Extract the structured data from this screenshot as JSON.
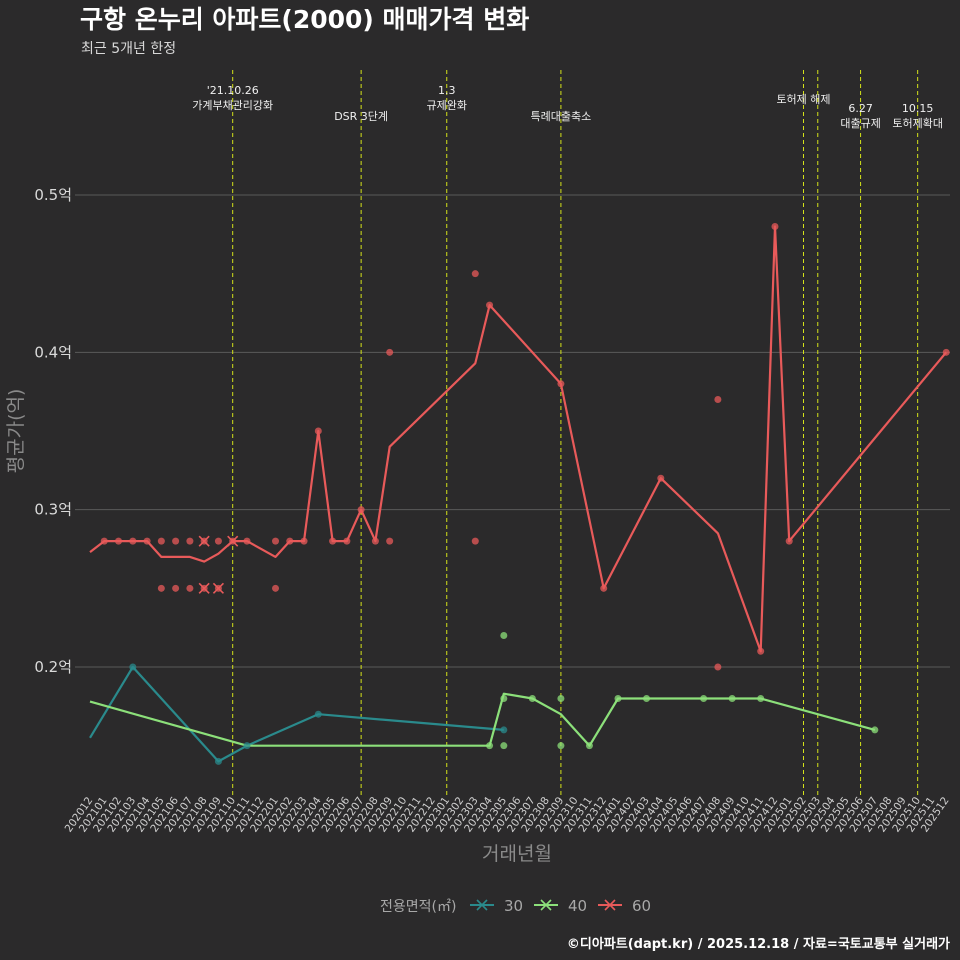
{
  "header": {
    "title": "구항 온누리 아파트(2000) 매매가격 변화",
    "subtitle": "최근 5개년 한정"
  },
  "caption": "©디아파트(dapt.kr) / 2025.12.18 / 자료=국토교통부 실거래가",
  "colors": {
    "background": "#2b2a2b",
    "grid": "#5a5a5a",
    "event_line": "#d4e21a",
    "s30": "#2a8a8c",
    "s40": "#8ce07a",
    "s60": "#e85a5a"
  },
  "chart_data": {
    "type": "line",
    "title": "구항 온누리 아파트(2000) 매매가격 변화",
    "xlabel": "거래년월",
    "ylabel": "평균가(억)",
    "ylim": [
      0.125,
      0.575
    ],
    "yticks": [
      0.2,
      0.3,
      0.4,
      0.5
    ],
    "ytick_labels": [
      "0.2억",
      "0.3억",
      "0.4억",
      "0.5억"
    ],
    "categories": [
      "202012",
      "202101",
      "202102",
      "202103",
      "202104",
      "202105",
      "202106",
      "202107",
      "202108",
      "202109",
      "202110",
      "202111",
      "202112",
      "202201",
      "202202",
      "202203",
      "202204",
      "202205",
      "202206",
      "202207",
      "202208",
      "202209",
      "202210",
      "202211",
      "202212",
      "202301",
      "202302",
      "202303",
      "202304",
      "202305",
      "202306",
      "202307",
      "202308",
      "202309",
      "202310",
      "202311",
      "202312",
      "202401",
      "202402",
      "202403",
      "202404",
      "202405",
      "202406",
      "202407",
      "202408",
      "202409",
      "202410",
      "202411",
      "202412",
      "202501",
      "202502",
      "202503",
      "202504",
      "202505",
      "202506",
      "202507",
      "202508",
      "202509",
      "202510",
      "202511",
      "202512"
    ],
    "legend_title": "전용면적(㎡)",
    "series": [
      {
        "name": "30",
        "line": [
          [
            "202012",
            0.155
          ],
          [
            "202103",
            0.2
          ],
          [
            "202109",
            0.14
          ],
          [
            "202111",
            0.15
          ],
          [
            "202204",
            0.17
          ],
          [
            "202305",
            0.16
          ]
        ],
        "points": [
          [
            "202103",
            0.2
          ],
          [
            "202109",
            0.14
          ],
          [
            "202111",
            0.15
          ],
          [
            "202204",
            0.17
          ],
          [
            "202305",
            0.16
          ]
        ]
      },
      {
        "name": "40",
        "line": [
          [
            "202012",
            0.178
          ],
          [
            "202111",
            0.15
          ],
          [
            "202304",
            0.15
          ],
          [
            "202305",
            0.183
          ],
          [
            "202307",
            0.18
          ],
          [
            "202309",
            0.17
          ],
          [
            "202311",
            0.15
          ],
          [
            "202401",
            0.18
          ],
          [
            "202411",
            0.18
          ],
          [
            "202507",
            0.16
          ]
        ],
        "points": [
          [
            "202304",
            0.15
          ],
          [
            "202305",
            0.22
          ],
          [
            "202305",
            0.18
          ],
          [
            "202305",
            0.15
          ],
          [
            "202307",
            0.18
          ],
          [
            "202309",
            0.18
          ],
          [
            "202309",
            0.15
          ],
          [
            "202311",
            0.15
          ],
          [
            "202401",
            0.18
          ],
          [
            "202403",
            0.18
          ],
          [
            "202407",
            0.18
          ],
          [
            "202409",
            0.18
          ],
          [
            "202411",
            0.18
          ],
          [
            "202507",
            0.16
          ]
        ]
      },
      {
        "name": "60",
        "line": [
          [
            "202012",
            0.273
          ],
          [
            "202101",
            0.28
          ],
          [
            "202104",
            0.28
          ],
          [
            "202105",
            0.27
          ],
          [
            "202107",
            0.27
          ],
          [
            "202108",
            0.267
          ],
          [
            "202109",
            0.272
          ],
          [
            "202110",
            0.28
          ],
          [
            "202111",
            0.28
          ],
          [
            "202201",
            0.27
          ],
          [
            "202202",
            0.28
          ],
          [
            "202203",
            0.28
          ],
          [
            "202204",
            0.35
          ],
          [
            "202205",
            0.28
          ],
          [
            "202206",
            0.28
          ],
          [
            "202207",
            0.3
          ],
          [
            "202208",
            0.28
          ],
          [
            "202209",
            0.34
          ],
          [
            "202303",
            0.393
          ],
          [
            "202304",
            0.43
          ],
          [
            "202309",
            0.38
          ],
          [
            "202312",
            0.25
          ],
          [
            "202404",
            0.32
          ],
          [
            "202408",
            0.285
          ],
          [
            "202411",
            0.21
          ],
          [
            "202412",
            0.48
          ],
          [
            "202501",
            0.28
          ],
          [
            "202512",
            0.4
          ]
        ],
        "points": [
          [
            "202101",
            0.28
          ],
          [
            "202102",
            0.28
          ],
          [
            "202103",
            0.28
          ],
          [
            "202104",
            0.28
          ],
          [
            "202105",
            0.28
          ],
          [
            "202106",
            0.28
          ],
          [
            "202107",
            0.28
          ],
          [
            "202108",
            0.28
          ],
          [
            "202109",
            0.28
          ],
          [
            "202110",
            0.28
          ],
          [
            "202111",
            0.28
          ],
          [
            "202201",
            0.28
          ],
          [
            "202202",
            0.28
          ],
          [
            "202203",
            0.28
          ],
          [
            "202105",
            0.25
          ],
          [
            "202106",
            0.25
          ],
          [
            "202107",
            0.25
          ],
          [
            "202108",
            0.25
          ],
          [
            "202109",
            0.25
          ],
          [
            "202201",
            0.25
          ],
          [
            "202204",
            0.35
          ],
          [
            "202205",
            0.28
          ],
          [
            "202206",
            0.28
          ],
          [
            "202207",
            0.3
          ],
          [
            "202208",
            0.28
          ],
          [
            "202209",
            0.28
          ],
          [
            "202209",
            0.4
          ],
          [
            "202303",
            0.45
          ],
          [
            "202303",
            0.28
          ],
          [
            "202304",
            0.43
          ],
          [
            "202309",
            0.38
          ],
          [
            "202312",
            0.25
          ],
          [
            "202404",
            0.32
          ],
          [
            "202408",
            0.37
          ],
          [
            "202408",
            0.2
          ],
          [
            "202411",
            0.21
          ],
          [
            "202412",
            0.48
          ],
          [
            "202501",
            0.28
          ],
          [
            "202512",
            0.4
          ]
        ],
        "cross_markers": [
          [
            "202108",
            0.28
          ],
          [
            "202110",
            0.28
          ],
          [
            "202108",
            0.25
          ],
          [
            "202109",
            0.25
          ]
        ]
      }
    ],
    "events": [
      {
        "at": "202110",
        "lines": [
          "'21.10.26",
          "가계부채관리강화"
        ],
        "level": "top"
      },
      {
        "at": "202207",
        "lines": [
          "DSR 3단계"
        ],
        "level": "mid"
      },
      {
        "at": "202301",
        "lines": [
          "1.3",
          "규제완화"
        ],
        "level": "top"
      },
      {
        "at": "202309",
        "lines": [
          "특례대출축소"
        ],
        "level": "mid"
      },
      {
        "at": "202502",
        "lines": [
          "토허제 해제"
        ],
        "level": "upper"
      },
      {
        "at": "202503",
        "lines": [],
        "level": "none"
      },
      {
        "at": "202506",
        "lines": [
          "6.27",
          "대출규제"
        ],
        "level": "low"
      },
      {
        "at": "202510",
        "lines": [
          "10.15",
          "토허제확대"
        ],
        "level": "low"
      }
    ]
  }
}
